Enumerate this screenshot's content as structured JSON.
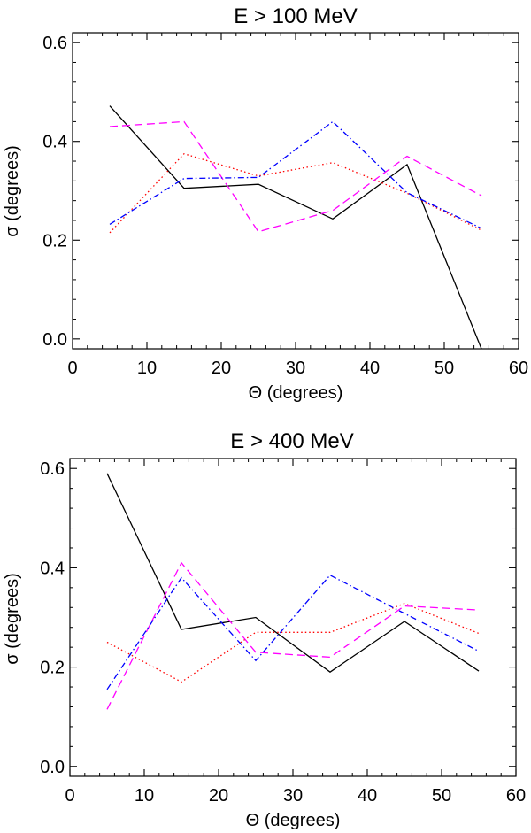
{
  "chart_data": [
    {
      "type": "line",
      "title": "E > 100 MeV",
      "xlabel": "Θ (degrees)",
      "ylabel": "σ (degrees)",
      "xlim": [
        0,
        60
      ],
      "ylim": [
        -0.02,
        0.62
      ],
      "xticks": [
        0,
        10,
        20,
        30,
        40,
        50,
        60
      ],
      "xtick_labels": [
        "0",
        "10",
        "20",
        "30",
        "40",
        "50",
        "60"
      ],
      "yticks": [
        0.0,
        0.2,
        0.4,
        0.6
      ],
      "ytick_labels": [
        "0.0",
        "0.2",
        "0.4",
        "0.6"
      ],
      "x": [
        5,
        15,
        25,
        35,
        45,
        55
      ],
      "series": [
        {
          "name": "solid",
          "color": "#000000",
          "dash": "solid",
          "values": [
            0.472,
            0.305,
            0.313,
            0.243,
            0.353,
            -0.02
          ]
        },
        {
          "name": "dotted",
          "color": "#ff0000",
          "dash": "dotted",
          "values": [
            0.215,
            0.375,
            0.33,
            0.357,
            0.295,
            0.22
          ]
        },
        {
          "name": "dashed",
          "color": "#ff00ff",
          "dash": "dashed",
          "values": [
            0.43,
            0.44,
            0.217,
            0.26,
            0.37,
            0.29
          ]
        },
        {
          "name": "dash-dot",
          "color": "#0000ff",
          "dash": "dashdot",
          "values": [
            0.232,
            0.325,
            0.327,
            0.44,
            0.296,
            0.224
          ]
        }
      ]
    },
    {
      "type": "line",
      "title": "E > 400 MeV",
      "xlabel": "Θ (degrees)",
      "ylabel": "σ (degrees)",
      "xlim": [
        0,
        60
      ],
      "ylim": [
        -0.02,
        0.62
      ],
      "xticks": [
        0,
        10,
        20,
        30,
        40,
        50,
        60
      ],
      "xtick_labels": [
        "0",
        "10",
        "20",
        "30",
        "40",
        "50",
        "60"
      ],
      "yticks": [
        0.0,
        0.2,
        0.4,
        0.6
      ],
      "ytick_labels": [
        "0.0",
        "0.2",
        "0.4",
        "0.6"
      ],
      "x": [
        5,
        15,
        25,
        35,
        45,
        55
      ],
      "series": [
        {
          "name": "solid",
          "color": "#000000",
          "dash": "solid",
          "values": [
            0.59,
            0.276,
            0.3,
            0.19,
            0.292,
            0.192
          ]
        },
        {
          "name": "dotted",
          "color": "#ff0000",
          "dash": "dotted",
          "values": [
            0.25,
            0.17,
            0.27,
            0.27,
            0.328,
            0.268
          ]
        },
        {
          "name": "dashed",
          "color": "#ff00ff",
          "dash": "dashed",
          "values": [
            0.115,
            0.41,
            0.23,
            0.22,
            0.323,
            0.315
          ]
        },
        {
          "name": "dash-dot",
          "color": "#0000ff",
          "dash": "dashdot",
          "values": [
            0.155,
            0.38,
            0.213,
            0.385,
            0.308,
            0.232
          ]
        }
      ]
    }
  ]
}
